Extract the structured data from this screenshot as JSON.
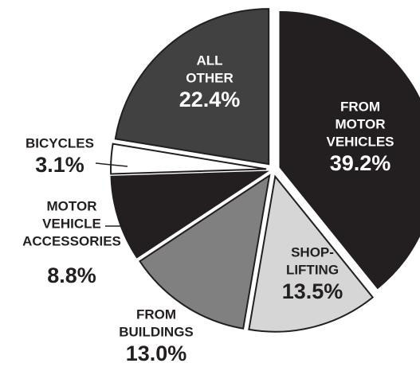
{
  "chart_data": {
    "type": "pie",
    "categories": [
      [
        "FROM",
        "MOTOR",
        "VEHICLES"
      ],
      [
        "SHOP-",
        "LIFTING"
      ],
      [
        "FROM",
        "BUILDINGS"
      ],
      [
        "MOTOR",
        "VEHICLE",
        "ACCESSORIES"
      ],
      [
        "BICYCLES"
      ],
      [
        "ALL",
        "OTHER"
      ]
    ],
    "values": [
      39.2,
      13.5,
      13.0,
      8.8,
      3.1,
      22.4
    ],
    "value_labels": [
      "39.2%",
      "13.5%",
      "13.0%",
      "8.8%",
      "3.1%",
      "22.4%"
    ],
    "colors": [
      "#231f20",
      "#d6d6d6",
      "#808080",
      "#231f20",
      "#ffffff",
      "#414141"
    ]
  }
}
